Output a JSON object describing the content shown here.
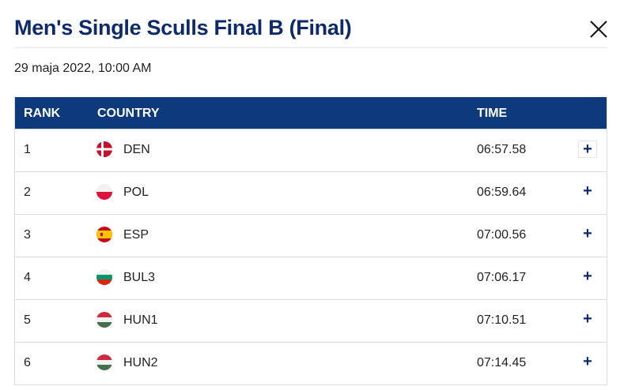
{
  "header": {
    "title": "Men's Single Sculls Final B (Final)",
    "close_icon": "close-icon"
  },
  "date": "29 maja 2022, 10:00 AM",
  "table": {
    "columns": {
      "rank": "RANK",
      "country": "COUNTRY",
      "time": "TIME"
    },
    "rows": [
      {
        "rank": "1",
        "country": "DEN",
        "time": "06:57.58",
        "flag": "denmark-flag-icon",
        "expand": "+"
      },
      {
        "rank": "2",
        "country": "POL",
        "time": "06:59.64",
        "flag": "poland-flag-icon",
        "expand": "+"
      },
      {
        "rank": "3",
        "country": "ESP",
        "time": "07:00.56",
        "flag": "spain-flag-icon",
        "expand": "+"
      },
      {
        "rank": "4",
        "country": "BUL3",
        "time": "07:06.17",
        "flag": "bulgaria-flag-icon",
        "expand": "+"
      },
      {
        "rank": "5",
        "country": "HUN1",
        "time": "07:10.51",
        "flag": "hungary-flag-icon",
        "expand": "+"
      },
      {
        "rank": "6",
        "country": "HUN2",
        "time": "07:14.45",
        "flag": "hungary-flag-icon",
        "expand": "+"
      }
    ]
  },
  "colors": {
    "title": "#0d2a6b",
    "header_bg": "#0d3a7d",
    "header_text": "#ffffff"
  }
}
